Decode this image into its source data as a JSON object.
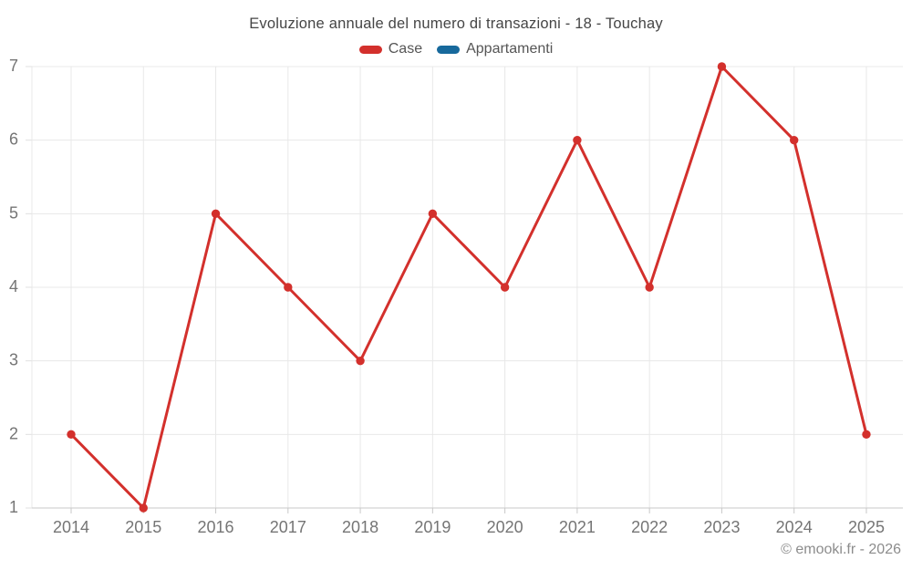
{
  "title": "Evoluzione annuale del numero di transazioni - 18 - Touchay",
  "legend": {
    "items": [
      {
        "label": "Case",
        "color": "#d3302c"
      },
      {
        "label": "Appartamenti",
        "color": "#17699c"
      }
    ]
  },
  "watermark": "© emooki.fr - 2026",
  "chart_data": {
    "type": "line",
    "title": "Evoluzione annuale del numero di transazioni - 18 - Touchay",
    "categories": [
      "2014",
      "2015",
      "2016",
      "2017",
      "2018",
      "2019",
      "2020",
      "2021",
      "2022",
      "2023",
      "2024",
      "2025"
    ],
    "series": [
      {
        "name": "Case",
        "color": "#d3302c",
        "values": [
          2,
          1,
          5,
          4,
          3,
          5,
          4,
          6,
          4,
          7,
          6,
          2
        ]
      },
      {
        "name": "Appartamenti",
        "color": "#17699c",
        "values": []
      }
    ],
    "ylim": [
      1,
      7
    ],
    "yticks": [
      1,
      2,
      3,
      4,
      5,
      6,
      7
    ],
    "grid": true,
    "legend_position": "top",
    "xlabel": "",
    "ylabel": ""
  }
}
